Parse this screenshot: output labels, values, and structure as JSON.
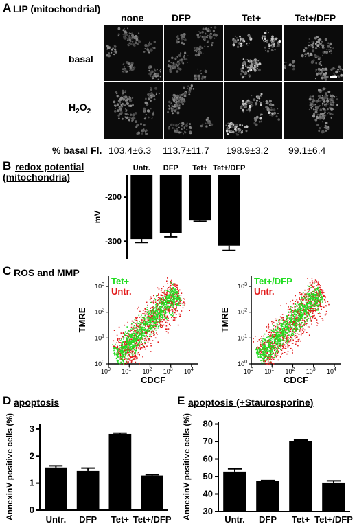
{
  "panelA": {
    "letter": "A",
    "title": "LIP (mitochondrial)",
    "conditions": [
      "none",
      "DFP",
      "Tet+",
      "Tet+/DFP"
    ],
    "rows": [
      "basal",
      "H2O2"
    ],
    "row_h2o2_main": "H",
    "row_h2o2_sub1": "2",
    "row_h2o2_mid": "O",
    "row_h2o2_sub2": "2",
    "basal_label": "% basal Fl.",
    "basal_values": [
      "103.4±6.3",
      "113.7±11.7",
      "198.9±3.2",
      "99.1±6.4"
    ]
  },
  "panelB": {
    "letter": "B",
    "title_line1": "redox potential",
    "title_line2": "(mitochondria)",
    "chart_data": {
      "type": "bar",
      "categories": [
        "Untr.",
        "DFP",
        "Tet+",
        "Tet+/DFP"
      ],
      "values": [
        -295,
        -281,
        -253,
        -310
      ],
      "errors": [
        8,
        9,
        2,
        11
      ],
      "ylabel": "mV",
      "yticks": [
        -200,
        -300
      ],
      "ylim": [
        -340,
        -150
      ]
    }
  },
  "panelC": {
    "letter": "C",
    "title": "ROS and MMP",
    "plots": [
      {
        "legend": [
          "Tet+",
          "Untr."
        ],
        "xlabel": "CDCF",
        "ylabel": "TMRE"
      },
      {
        "legend": [
          "Tet+/DFP",
          "Untr."
        ],
        "xlabel": "CDCF",
        "ylabel": "TMRE"
      }
    ],
    "colors": {
      "green": "#22dd22",
      "red": "#e21b1b"
    }
  },
  "panelD": {
    "letter": "D",
    "title": "apoptosis",
    "chart_data": {
      "type": "bar",
      "categories": [
        "Untr.",
        "DFP",
        "Tet+",
        "Tet+/DFP"
      ],
      "values": [
        1.58,
        1.45,
        2.82,
        1.28
      ],
      "errors": [
        0.06,
        0.11,
        0.03,
        0.03
      ],
      "ylabel": "AnnexinV positive cells (%)",
      "yticks": [
        0,
        1,
        2,
        3
      ],
      "ylim": [
        0,
        3.2
      ]
    }
  },
  "panelE": {
    "letter": "E",
    "title": "apoptosis (+Staurosporine)",
    "chart_data": {
      "type": "bar",
      "categories": [
        "Untr.",
        "DFP",
        "Tet+",
        "Tet+/DFP"
      ],
      "values": [
        52.8,
        47.3,
        70.2,
        46.5
      ],
      "errors": [
        1.6,
        0.4,
        0.6,
        1.0
      ],
      "ylabel": "AnnexinV positive cells (%)",
      "yticks": [
        30,
        40,
        50,
        60,
        70,
        80
      ],
      "ylim": [
        30,
        81
      ]
    }
  }
}
